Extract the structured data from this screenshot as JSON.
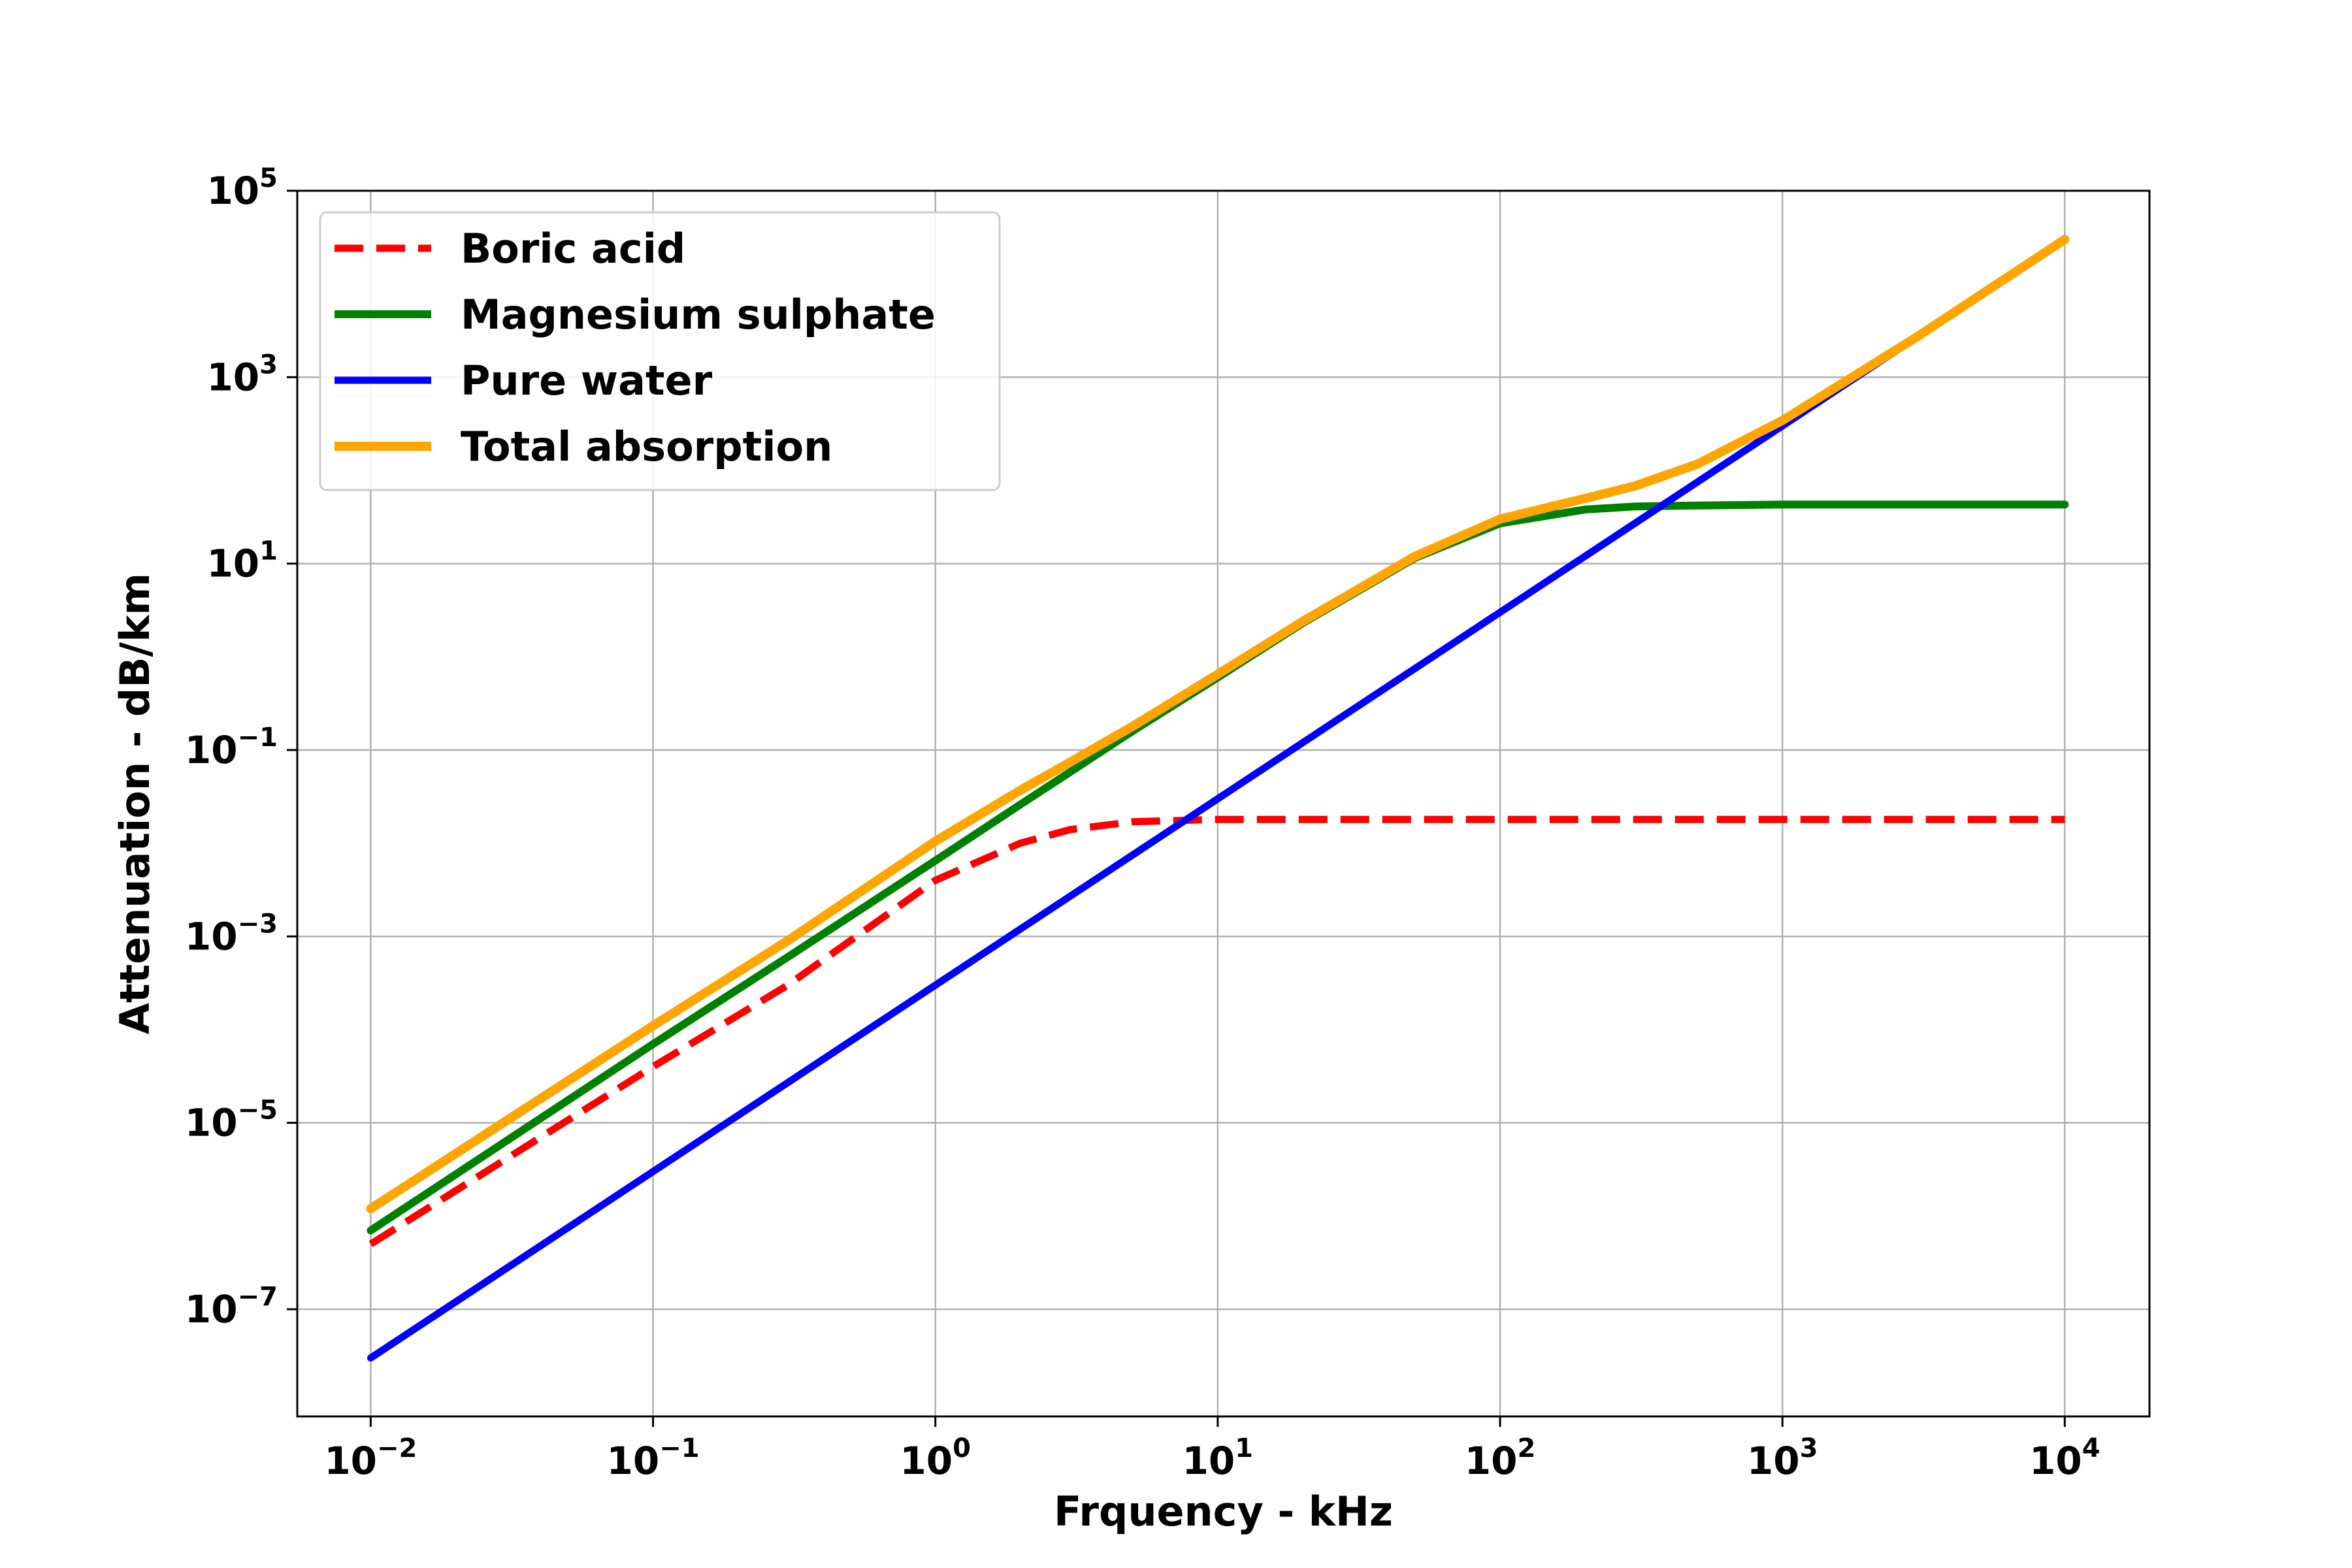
{
  "chart_data": {
    "type": "line",
    "title": "",
    "xlabel": "Frquency - kHz",
    "ylabel": "Attenuation - dB/km",
    "xscale": "log",
    "yscale": "log",
    "xlim": [
      0.0055,
      20000
    ],
    "ylim": [
      1e-07,
      100000
    ],
    "xlim_log10": [
      -2.26,
      4.3
    ],
    "ylim_log10": [
      -8.15,
      5.0
    ],
    "grid": true,
    "legend_position": "top-left",
    "x_ticks": [
      {
        "base": "10",
        "exp": "−2",
        "value": 0.01
      },
      {
        "base": "10",
        "exp": "−1",
        "value": 0.1
      },
      {
        "base": "10",
        "exp": "0",
        "value": 1
      },
      {
        "base": "10",
        "exp": "1",
        "value": 10
      },
      {
        "base": "10",
        "exp": "2",
        "value": 100
      },
      {
        "base": "10",
        "exp": "3",
        "value": 1000
      },
      {
        "base": "10",
        "exp": "4",
        "value": 10000
      }
    ],
    "y_ticks": [
      {
        "base": "10",
        "exp": "−7",
        "value": 1e-07
      },
      {
        "base": "10",
        "exp": "−5",
        "value": 1e-05
      },
      {
        "base": "10",
        "exp": "−3",
        "value": 0.001
      },
      {
        "base": "10",
        "exp": "−1",
        "value": 0.1
      },
      {
        "base": "10",
        "exp": "1",
        "value": 10
      },
      {
        "base": "10",
        "exp": "3",
        "value": 1000
      },
      {
        "base": "10",
        "exp": "5",
        "value": 100000
      }
    ],
    "x": [
      0.01,
      0.1,
      0.3,
      1,
      2,
      3,
      5,
      10,
      20,
      50,
      100,
      200,
      300,
      500,
      1000,
      3000,
      10000
    ],
    "series": [
      {
        "name": "Boric acid",
        "color": "#ff0000",
        "dash": "dashed",
        "values": [
          5e-07,
          4e-05,
          0.0003,
          0.004,
          0.01,
          0.014,
          0.017,
          0.018,
          0.018,
          0.018,
          0.018,
          0.018,
          0.018,
          0.018,
          0.018,
          0.018,
          0.018
        ]
      },
      {
        "name": "Magnesium sulphate",
        "color": "#008000",
        "dash": "solid",
        "values": [
          7e-07,
          7e-05,
          0.0006,
          0.0065,
          0.026,
          0.058,
          0.16,
          0.6,
          2.3,
          11.5,
          27,
          38,
          41,
          42,
          43,
          43,
          43
        ]
      },
      {
        "name": "Pure water",
        "color": "#0000ff",
        "dash": "solid",
        "values": [
          3e-08,
          3e-06,
          2.7e-05,
          0.0003,
          0.0012,
          0.0027,
          0.0075,
          0.03,
          0.12,
          0.75,
          3,
          12,
          27,
          75,
          300,
          2700,
          30000
        ]
      },
      {
        "name": "Total absorption",
        "color": "#ffa500",
        "dash": "solid",
        "values": [
          1.2e-06,
          0.00011,
          0.0009,
          0.0105,
          0.037,
          0.074,
          0.18,
          0.65,
          2.4,
          12,
          30,
          50,
          68,
          117,
          343,
          2718,
          30043
        ]
      }
    ]
  }
}
